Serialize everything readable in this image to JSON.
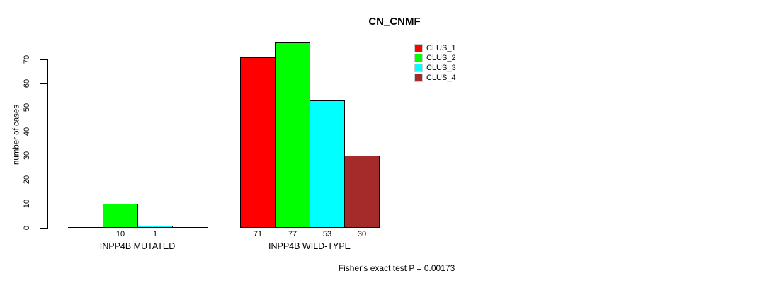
{
  "chart_data": {
    "type": "bar",
    "title": "CN_CNMF",
    "ylabel": "number of cases",
    "ylim": [
      0,
      70
    ],
    "yticks": [
      0,
      10,
      20,
      30,
      40,
      50,
      60,
      70
    ],
    "categories": [
      "INPP4B MUTATED",
      "INPP4B WILD-TYPE"
    ],
    "series": [
      {
        "name": "CLUS_1",
        "color": "#ff0000",
        "values": [
          0,
          71
        ]
      },
      {
        "name": "CLUS_2",
        "color": "#00ff00",
        "values": [
          10,
          77
        ]
      },
      {
        "name": "CLUS_3",
        "color": "#00ffff",
        "values": [
          1,
          53
        ]
      },
      {
        "name": "CLUS_4",
        "color": "#a52a2a",
        "values": [
          0,
          30
        ]
      }
    ],
    "bar_value_labels": [
      [
        "",
        "10",
        "1",
        ""
      ],
      [
        "71",
        "77",
        "53",
        "30"
      ]
    ],
    "legend_position": "top-right",
    "grid": false,
    "annotation": "Fisher's exact test P = 0.00173"
  }
}
